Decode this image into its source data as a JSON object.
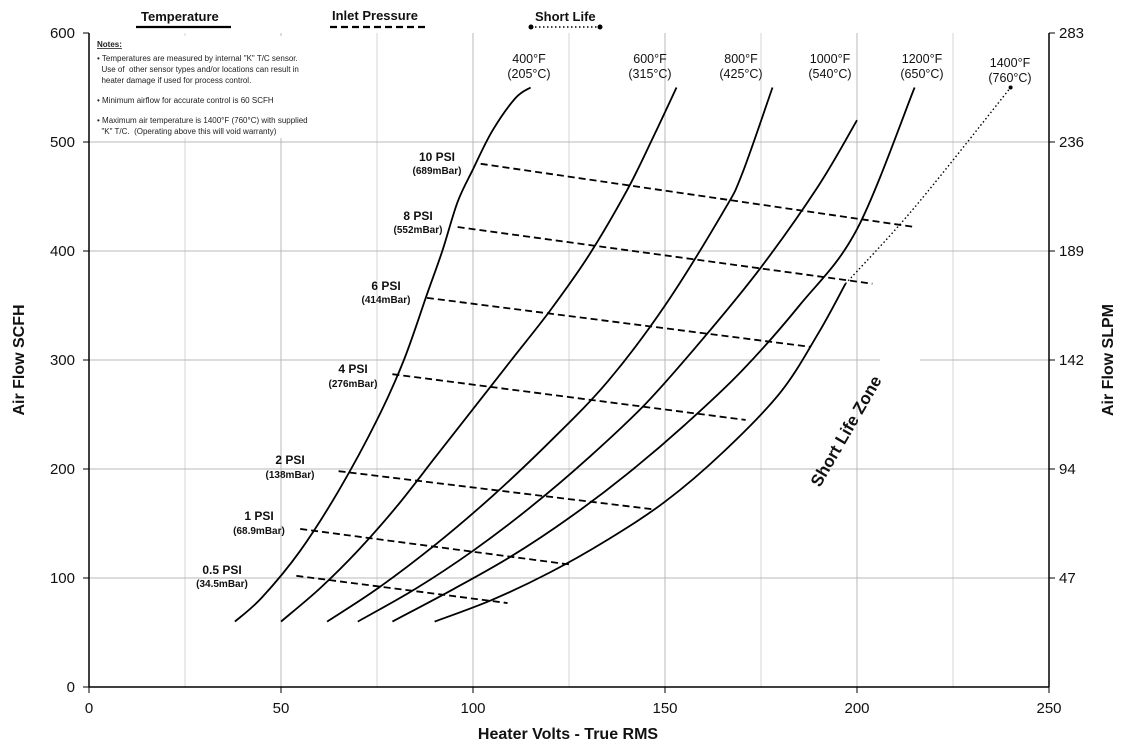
{
  "chart_data": {
    "type": "line",
    "title": "",
    "xlabel": "Heater Volts - True RMS",
    "ylabel": "Air Flow SCFH",
    "y2label": "Air Flow SLPM",
    "xlim": [
      0,
      250
    ],
    "ylim": [
      0,
      600
    ],
    "x_ticks": [
      "0",
      "50",
      "100",
      "150",
      "200",
      "250"
    ],
    "y_ticks": [
      "0",
      "100",
      "200",
      "300",
      "400",
      "500",
      "600"
    ],
    "y2_ticks": [
      "47",
      "94",
      "142",
      "189",
      "236",
      "283"
    ],
    "grid": true,
    "legend": {
      "position": "top",
      "items": [
        {
          "label": "Temperature",
          "style": "solid"
        },
        {
          "label": "Inlet Pressure",
          "style": "dashed"
        },
        {
          "label": "Short Life",
          "style": "dotted"
        }
      ]
    },
    "notes": {
      "title": "Notes:",
      "lines": [
        "• Temperatures are measured by internal \"K\" T/C sensor.",
        "  Use of  other sensor types and/or locations can result in",
        "  heater damage if used for process control.",
        "• Minimum airflow for accurate control is 60 SCFH",
        "• Maximum air temperature is 1400°F (760°C)  with supplied",
        "  \"K\" T/C.  (Operating above this will void warranty)"
      ]
    },
    "temperature_series": [
      {
        "name_f": "400°F",
        "name_c": "(205°C)",
        "x": [
          38,
          45,
          55,
          65,
          75,
          82,
          88,
          92,
          96,
          100,
          105,
          111,
          115
        ],
        "y": [
          60,
          82,
          125,
          180,
          245,
          300,
          360,
          400,
          445,
          475,
          510,
          540,
          550
        ]
      },
      {
        "name_f": "600°F",
        "name_c": "(315°C)",
        "x": [
          50,
          60,
          70,
          80,
          90,
          100,
          110,
          120,
          130,
          140,
          147,
          153
        ],
        "y": [
          60,
          90,
          125,
          165,
          210,
          255,
          300,
          345,
          395,
          455,
          505,
          550
        ]
      },
      {
        "name_f": "800°F",
        "name_c": "(425°C)",
        "x": [
          62,
          75,
          90,
          105,
          120,
          135,
          150,
          165,
          170,
          178
        ],
        "y": [
          60,
          90,
          130,
          175,
          225,
          280,
          350,
          435,
          470,
          550
        ]
      },
      {
        "name_f": "1000°F",
        "name_c": "(540°C)",
        "x": [
          70,
          85,
          100,
          115,
          130,
          145,
          160,
          175,
          190,
          200
        ],
        "y": [
          60,
          90,
          125,
          165,
          210,
          260,
          320,
          385,
          460,
          520
        ]
      },
      {
        "name_f": "1200°F",
        "name_c": "(650°C)",
        "x": [
          79,
          95,
          110,
          125,
          140,
          155,
          170,
          185,
          200,
          215
        ],
        "y": [
          60,
          90,
          120,
          155,
          195,
          240,
          290,
          350,
          420,
          550
        ]
      },
      {
        "name_f": "",
        "name_c": "",
        "x": [
          90,
          105,
          120,
          135,
          150,
          165,
          180,
          190,
          197
        ],
        "y": [
          60,
          80,
          105,
          135,
          170,
          215,
          270,
          325,
          370
        ]
      }
    ],
    "short_life": {
      "name_f": "1400°F",
      "name_c": "(760°C)",
      "x": [
        197,
        215,
        240
      ],
      "y": [
        370,
        440,
        550
      ]
    },
    "pressure_series": [
      {
        "psi": "10 PSI",
        "mbar": "(689mBar)",
        "x": [
          102,
          215
        ],
        "y": [
          480,
          422
        ]
      },
      {
        "psi": "8 PSI",
        "mbar": "(552mBar)",
        "x": [
          96,
          204
        ],
        "y": [
          422,
          370
        ]
      },
      {
        "psi": "6 PSI",
        "mbar": "(414mBar)",
        "x": [
          88,
          188
        ],
        "y": [
          357,
          312
        ]
      },
      {
        "psi": "4 PSI",
        "mbar": "(276mBar)",
        "x": [
          79,
          171
        ],
        "y": [
          287,
          245
        ]
      },
      {
        "psi": "2 PSI",
        "mbar": "(138mBar)",
        "x": [
          65,
          147
        ],
        "y": [
          198,
          163
        ]
      },
      {
        "psi": "1 PSI",
        "mbar": "(68.9mBar)",
        "x": [
          55,
          126
        ],
        "y": [
          145,
          112
        ]
      },
      {
        "psi": "0.5 PSI",
        "mbar": "(34.5mBar)",
        "x": [
          54,
          109
        ],
        "y": [
          102,
          77
        ]
      }
    ],
    "annotations": [
      {
        "text": "Short Life Zone"
      }
    ]
  }
}
